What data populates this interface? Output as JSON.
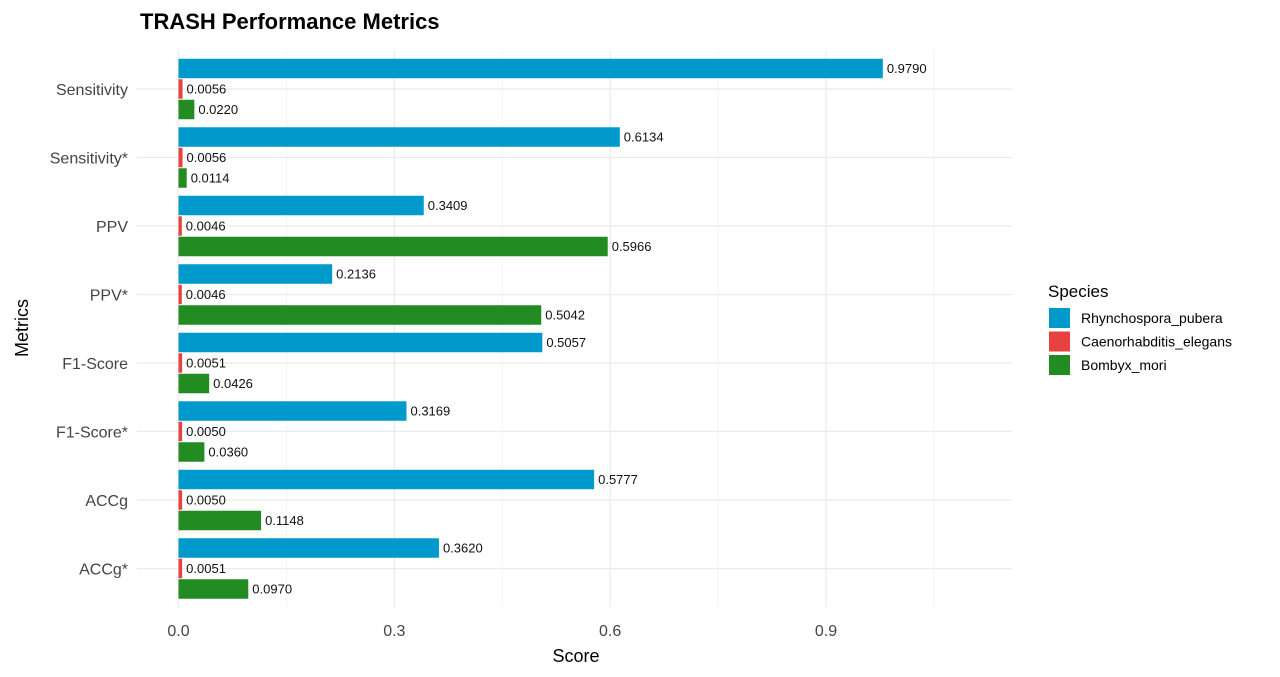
{
  "chart_data": {
    "type": "bar",
    "orientation": "horizontal",
    "title": "TRASH Performance Metrics",
    "xlabel": "Score",
    "ylabel": "Metrics",
    "categories": [
      "Sensitivity",
      "Sensitivity*",
      "PPV",
      "PPV*",
      "F1-Score",
      "F1-Score*",
      "ACCg",
      "ACCg*"
    ],
    "xlim": [
      0,
      1.1
    ],
    "xticks": [
      0.0,
      0.3,
      0.6,
      0.9
    ],
    "xtick_labels": [
      "0.0",
      "0.3",
      "0.6",
      "0.9"
    ],
    "grid": true,
    "legend": {
      "title": "Species",
      "position": "right"
    },
    "series": [
      {
        "name": "Rhynchospora_pubera",
        "color": "#0099cc",
        "values": [
          0.979,
          0.6134,
          0.3409,
          0.2136,
          0.5057,
          0.3169,
          0.5777,
          0.362
        ],
        "labels": [
          "0.9790",
          "0.6134",
          "0.3409",
          "0.2136",
          "0.5057",
          "0.3169",
          "0.5777",
          "0.3620"
        ]
      },
      {
        "name": "Caenorhabditis_elegans",
        "color": "#e84141",
        "values": [
          0.0056,
          0.0056,
          0.0046,
          0.0046,
          0.0051,
          0.005,
          0.005,
          0.0051
        ],
        "labels": [
          "0.0056",
          "0.0056",
          "0.0046",
          "0.0046",
          "0.0051",
          "0.0050",
          "0.0050",
          "0.0051"
        ]
      },
      {
        "name": "Bombyx_mori",
        "color": "#228b22",
        "values": [
          0.022,
          0.0114,
          0.5966,
          0.5042,
          0.0426,
          0.036,
          0.1148,
          0.097
        ],
        "labels": [
          "0.0220",
          "0.0114",
          "0.5966",
          "0.5042",
          "0.0426",
          "0.0360",
          "0.1148",
          "0.0970"
        ]
      }
    ]
  }
}
